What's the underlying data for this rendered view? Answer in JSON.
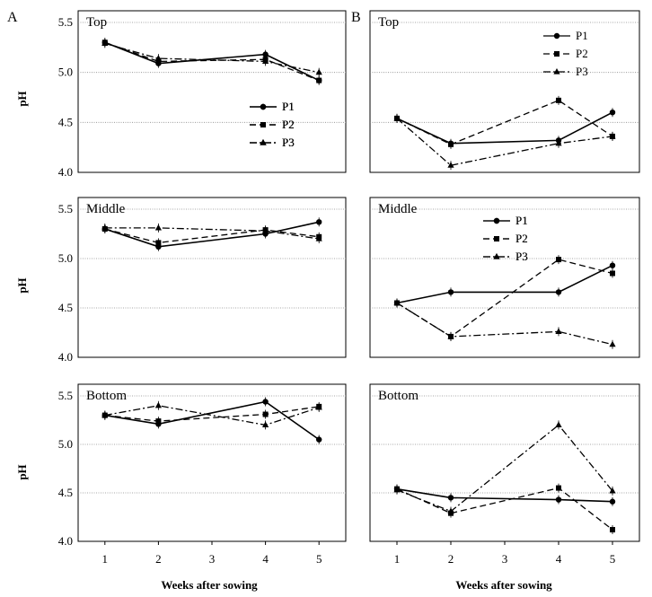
{
  "panel_labels": [
    "A",
    "B"
  ],
  "y_axis_label": "pH",
  "x_axis_label": "Weeks after sowing",
  "x_ticks": [
    "1",
    "2",
    "3",
    "4",
    "5"
  ],
  "y_ticks": [
    "4.0",
    "4.5",
    "5.0",
    "5.5"
  ],
  "series_names": [
    "P1",
    "P2",
    "P3"
  ],
  "chart_data": [
    {
      "type": "line",
      "panel": "A",
      "title": "Top",
      "x": [
        1,
        2,
        4,
        5
      ],
      "ylim": [
        4.0,
        5.5
      ],
      "xlim": [
        0.5,
        5.5
      ],
      "ylabel": "pH",
      "xlabel": "",
      "legend": "bottom-right",
      "series": [
        {
          "name": "P1",
          "values": [
            5.3,
            5.09,
            5.18,
            4.92
          ]
        },
        {
          "name": "P2",
          "values": [
            5.3,
            5.11,
            5.13,
            4.92
          ]
        },
        {
          "name": "P3",
          "values": [
            5.29,
            5.14,
            5.11,
            5.0
          ]
        }
      ]
    },
    {
      "type": "line",
      "panel": "A",
      "title": "Middle",
      "x": [
        1,
        2,
        4,
        5
      ],
      "ylim": [
        4.0,
        5.5
      ],
      "xlim": [
        0.5,
        5.5
      ],
      "ylabel": "pH",
      "xlabel": "",
      "legend": "bottom-right",
      "series": [
        {
          "name": "P1",
          "values": [
            5.3,
            5.12,
            5.25,
            5.37
          ]
        },
        {
          "name": "P2",
          "values": [
            5.3,
            5.16,
            5.29,
            5.22
          ]
        },
        {
          "name": "P3",
          "values": [
            5.31,
            5.31,
            5.28,
            5.2
          ]
        }
      ]
    },
    {
      "type": "line",
      "panel": "A",
      "title": "Bottom",
      "x": [
        1,
        2,
        4,
        5
      ],
      "ylim": [
        4.0,
        5.5
      ],
      "xlim": [
        0.5,
        5.5
      ],
      "ylabel": "pH",
      "xlabel": "Weeks after sowing",
      "legend": "bottom-right",
      "series": [
        {
          "name": "P1",
          "values": [
            5.3,
            5.21,
            5.44,
            5.05
          ]
        },
        {
          "name": "P2",
          "values": [
            5.3,
            5.24,
            5.31,
            5.39
          ]
        },
        {
          "name": "P3",
          "values": [
            5.3,
            5.4,
            5.2,
            5.38
          ]
        }
      ]
    },
    {
      "type": "line",
      "panel": "B",
      "title": "Top",
      "x": [
        1,
        2,
        4,
        5
      ],
      "ylim": [
        4.0,
        5.5
      ],
      "xlim": [
        0.5,
        5.5
      ],
      "ylabel": "",
      "xlabel": "",
      "legend": "top-right",
      "series": [
        {
          "name": "P1",
          "values": [
            4.54,
            4.29,
            4.32,
            4.6
          ]
        },
        {
          "name": "P2",
          "values": [
            4.54,
            4.28,
            4.72,
            4.36
          ]
        },
        {
          "name": "P3",
          "values": [
            4.54,
            4.07,
            4.29,
            4.36
          ]
        }
      ]
    },
    {
      "type": "line",
      "panel": "B",
      "title": "Middle",
      "x": [
        1,
        2,
        4,
        5
      ],
      "ylim": [
        4.0,
        5.5
      ],
      "xlim": [
        0.5,
        5.5
      ],
      "ylabel": "",
      "xlabel": "",
      "legend": "top-left",
      "series": [
        {
          "name": "P1",
          "values": [
            4.55,
            4.66,
            4.66,
            4.93
          ]
        },
        {
          "name": "P2",
          "values": [
            4.55,
            4.21,
            4.99,
            4.85
          ]
        },
        {
          "name": "P3",
          "values": [
            4.55,
            4.21,
            4.26,
            4.13
          ]
        }
      ]
    },
    {
      "type": "line",
      "panel": "B",
      "title": "Bottom",
      "x": [
        1,
        2,
        4,
        5
      ],
      "ylim": [
        4.0,
        5.5
      ],
      "xlim": [
        0.5,
        5.5
      ],
      "ylabel": "",
      "xlabel": "Weeks after sowing",
      "legend": "top-left",
      "series": [
        {
          "name": "P1",
          "values": [
            4.54,
            4.45,
            4.43,
            4.41
          ]
        },
        {
          "name": "P2",
          "values": [
            4.54,
            4.29,
            4.55,
            4.12
          ]
        },
        {
          "name": "P3",
          "values": [
            4.53,
            4.31,
            5.2,
            4.52
          ]
        }
      ]
    }
  ]
}
